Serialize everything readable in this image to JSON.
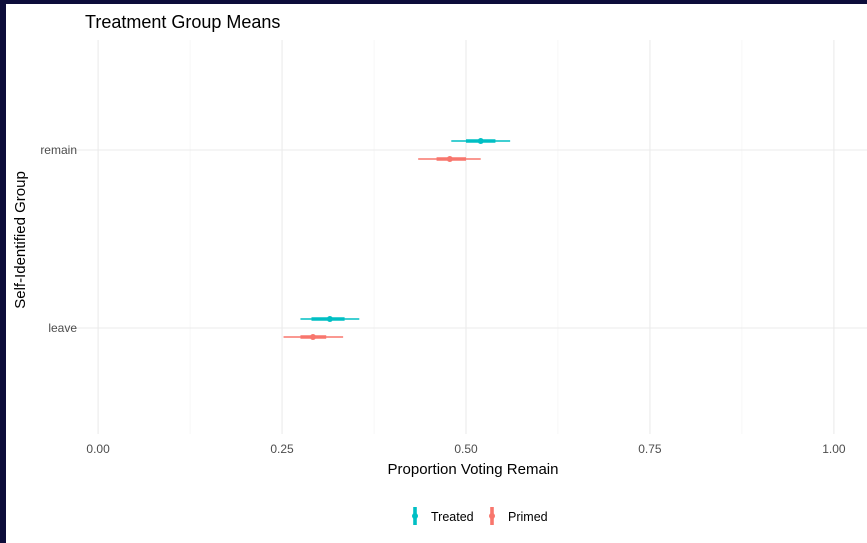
{
  "chart_data": {
    "type": "scatter",
    "title": "Treatment Group Means",
    "xlabel": "Proportion Voting Remain",
    "ylabel": "Self-Identified Group",
    "xlim": [
      -0.045,
      1.045
    ],
    "x_ticks": [
      0.0,
      0.25,
      0.5,
      0.75,
      1.0
    ],
    "x_tick_labels": [
      "0.00",
      "0.25",
      "0.50",
      "0.75",
      "1.00"
    ],
    "categories": [
      "leave",
      "remain"
    ],
    "grid": true,
    "legend_position": "bottom",
    "series": [
      {
        "name": "Treated",
        "color": "#00bfc4",
        "points": [
          {
            "category": "remain",
            "mean": 0.52,
            "inner": [
              0.5,
              0.54
            ],
            "outer": [
              0.48,
              0.56
            ]
          },
          {
            "category": "leave",
            "mean": 0.315,
            "inner": [
              0.29,
              0.335
            ],
            "outer": [
              0.275,
              0.355
            ]
          }
        ]
      },
      {
        "name": "Primed",
        "color": "#f8766d",
        "points": [
          {
            "category": "remain",
            "mean": 0.478,
            "inner": [
              0.46,
              0.5
            ],
            "outer": [
              0.435,
              0.52
            ]
          },
          {
            "category": "leave",
            "mean": 0.292,
            "inner": [
              0.275,
              0.31
            ],
            "outer": [
              0.252,
              0.333
            ]
          }
        ]
      }
    ]
  }
}
